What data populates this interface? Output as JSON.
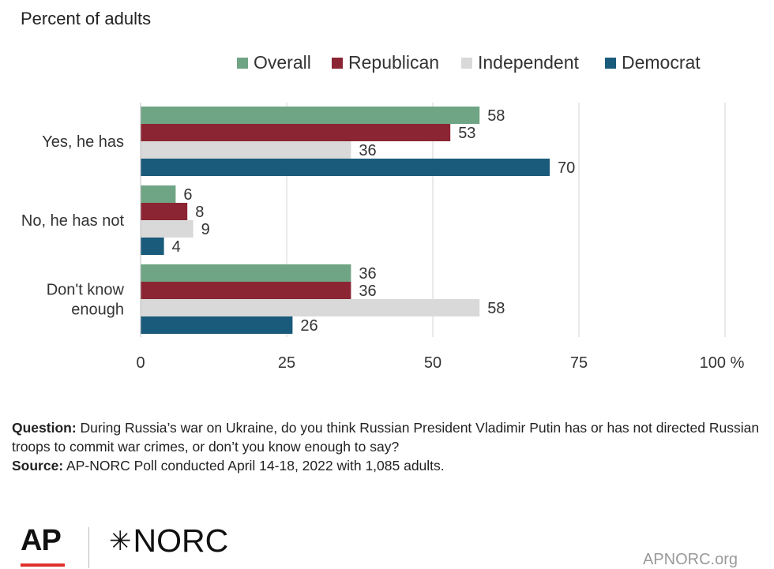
{
  "chart_data": {
    "type": "bar",
    "orientation": "horizontal",
    "subtitle": "Percent of adults",
    "categories": [
      "Yes, he has",
      "No, he has not",
      "Don't know enough"
    ],
    "series": [
      {
        "name": "Overall",
        "values": [
          58,
          6,
          36
        ],
        "color": "#6fa584"
      },
      {
        "name": "Republican",
        "values": [
          53,
          8,
          36
        ],
        "color": "#8b2533"
      },
      {
        "name": "Independent",
        "values": [
          36,
          9,
          58
        ],
        "color": "#d9d9d9"
      },
      {
        "name": "Democrat",
        "values": [
          70,
          4,
          26
        ],
        "color": "#1a5a7a"
      }
    ],
    "x_ticks": [
      "0",
      "25",
      "50",
      "75",
      "100"
    ],
    "x_unit": "%",
    "xlim": [
      0,
      100
    ],
    "grid": true,
    "legend_position": "top-right"
  },
  "footer": {
    "question_label": "Question:",
    "question_text": " During Russia’s war on Ukraine, do you think Russian President Vladimir Putin has or has not directed Russian troops to commit war crimes, or don’t you know enough to say?",
    "source_label": "Source:",
    "source_text": " AP-NORC Poll conducted April 14-18, 2022 with 1,085 adults."
  },
  "branding": {
    "ap_logo": "AP",
    "norc_logo": "NORC",
    "site": "APNORC.org",
    "ap_accent_color": "#e0302a"
  }
}
